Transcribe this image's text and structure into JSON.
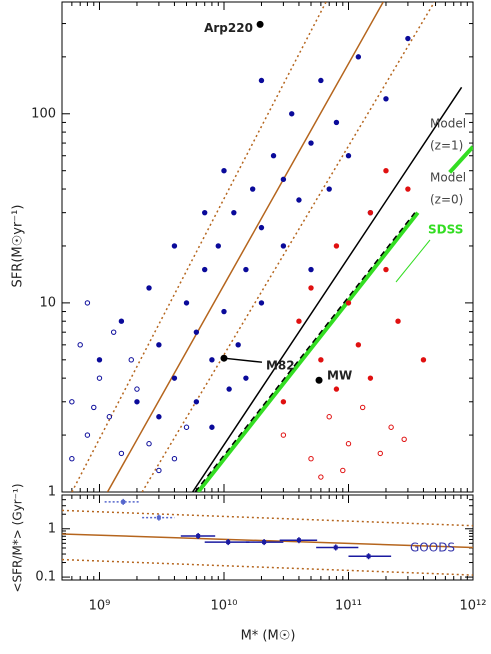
{
  "chart_data": [
    {
      "type": "scatter",
      "ylabel": "SFR(M☉yr⁻¹)",
      "xlog": true,
      "ylog": true,
      "xlim": [
        500000000.0,
        1000000000000.0
      ],
      "ylim": [
        1,
        390
      ],
      "yticks": [
        1,
        10,
        100
      ],
      "series": [
        {
          "color": "#0a0a9a",
          "marker": "filled",
          "x": [
            2000000000.0,
            3000000000.0,
            4000000000.0,
            5000000000.0,
            6000000000.0,
            7000000000.0,
            8000000000.0,
            9000000000.0,
            10000000000.0,
            12000000000.0,
            13000000000.0,
            15000000000.0,
            17000000000.0,
            20000000000.0,
            20000000000.0,
            25000000000.0,
            30000000000.0,
            30000000000.0,
            35000000000.0,
            40000000000.0,
            50000000000.0,
            50000000000.0,
            60000000000.0,
            70000000000.0,
            80000000000.0,
            100000000000.0,
            120000000000.0,
            150000000000.0,
            200000000000.0,
            300000000000.0,
            1500000000.0,
            2500000000.0,
            4000000000.0,
            6000000000.0,
            10000000000.0,
            15000000000.0,
            7000000000.0,
            3000000000.0,
            20000000000.0,
            1000000000.0,
            8000000000.0,
            11000000000.0
          ],
          "y": [
            3,
            6,
            4,
            10,
            7,
            15,
            5,
            20,
            9,
            30,
            6,
            15,
            40,
            25,
            10,
            60,
            20,
            45,
            100,
            35,
            70,
            15,
            150,
            40,
            90,
            60,
            200,
            30,
            120,
            250,
            8,
            12,
            20,
            3,
            50,
            4,
            30,
            2.5,
            150,
            5,
            2.2,
            3.5
          ]
        },
        {
          "color": "#0a0a9a",
          "marker": "open",
          "x": [
            600000000.0,
            700000000.0,
            800000000.0,
            1000000000.0,
            1200000000.0,
            1500000000.0,
            2000000000.0,
            2500000000.0,
            3000000000.0,
            800000000.0,
            1300000000.0,
            600000000.0,
            1800000000.0,
            4000000000.0,
            5000000000.0,
            900000000.0
          ],
          "y": [
            3,
            6,
            2,
            4,
            2.5,
            1.6,
            3.5,
            1.8,
            1.3,
            10,
            7,
            1.5,
            5,
            1.5,
            2.2,
            2.8
          ]
        },
        {
          "color": "#e01010",
          "marker": "filled",
          "x": [
            40000000000.0,
            50000000000.0,
            60000000000.0,
            80000000000.0,
            100000000000.0,
            120000000000.0,
            150000000000.0,
            200000000000.0,
            250000000000.0,
            300000000000.0,
            150000000000.0,
            30000000000.0,
            80000000000.0,
            400000000000.0,
            200000000000.0
          ],
          "y": [
            8,
            12,
            5,
            20,
            10,
            6,
            30,
            15,
            8,
            40,
            4,
            3,
            3.5,
            5,
            50
          ]
        },
        {
          "color": "#e01010",
          "marker": "open",
          "x": [
            30000000000.0,
            50000000000.0,
            70000000000.0,
            100000000000.0,
            130000000000.0,
            180000000000.0,
            220000000000.0,
            90000000000.0,
            60000000000.0,
            280000000000.0
          ],
          "y": [
            2,
            1.5,
            2.5,
            1.8,
            2.8,
            1.6,
            2.2,
            1.3,
            1.2,
            1.9
          ]
        }
      ],
      "lines": [
        {
          "color": "#b5651d",
          "style": "solid",
          "x": [
            1160000000.0,
            190000000000.0
          ],
          "y": [
            1,
            390
          ]
        },
        {
          "color": "#b5651d",
          "style": "dotted",
          "x": [
            600000000.0,
            66000000000.0
          ],
          "y": [
            1,
            390
          ]
        },
        {
          "color": "#b5651d",
          "style": "dotted",
          "x": [
            2200000000.0,
            490000000000.0
          ],
          "y": [
            1,
            390
          ]
        },
        {
          "color": "#000000",
          "style": "solid",
          "x": [
            5600000000.0,
            810000000000.0
          ],
          "y": [
            1,
            138
          ]
        },
        {
          "color": "#33dd22",
          "style": "thick",
          "x": [
            6200000000.0,
            360000000000.0
          ],
          "y": [
            1,
            30
          ]
        },
        {
          "color": "#33dd22",
          "style": "thick",
          "x": [
            650000000000.0,
            1000000000000.0
          ],
          "y": [
            49,
            67
          ]
        }
      ],
      "points": [
        {
          "text": "Arp220",
          "x": 19500000000.0,
          "y": 297
        },
        {
          "text": "M82",
          "x": 10000000000.0,
          "y": 5.1
        },
        {
          "text": "MW",
          "x": 58000000000.0,
          "y": 3.9
        }
      ],
      "annotations": [
        "Model",
        "(z=1)",
        "Model",
        "(z=0)",
        "SDSS"
      ]
    },
    {
      "type": "errorbar",
      "ylabel": "<SFR/M*> (Gyr⁻¹)",
      "xlabel": "M* (M☉)",
      "xlog": true,
      "ylog": true,
      "xlim": [
        500000000.0,
        1000000000000.0
      ],
      "ylim": [
        0.087,
        5
      ],
      "yticks": [
        0.1,
        1
      ],
      "xticks": [
        {
          "value": 1000000000.0,
          "label": "10⁹"
        },
        {
          "value": 10000000000.0,
          "label": "10¹⁰"
        },
        {
          "value": 100000000000.0,
          "label": "10¹¹"
        },
        {
          "value": 1000000000000.0,
          "label": "10¹²"
        }
      ],
      "series": [
        {
          "color": "#1a1aa0",
          "style": "solid",
          "x": [
            6200000000.0,
            10800000000.0,
            21000000000.0,
            40000000000.0,
            79000000000.0,
            145000000000.0
          ],
          "y": [
            0.71,
            0.53,
            0.53,
            0.58,
            0.41,
            0.27
          ],
          "xlow": [
            4500000000.0,
            7000000000.0,
            15000000000.0,
            28000000000.0,
            55000000000.0,
            100000000000.0
          ],
          "xhigh": [
            8500000000.0,
            16000000000.0,
            30000000000.0,
            56000000000.0,
            120000000000.0,
            220000000000.0
          ]
        },
        {
          "color": "#5566cc",
          "style": "dotted",
          "x": [
            1550000000.0,
            3000000000.0
          ],
          "y": [
            3.6,
            1.7
          ],
          "xlow": [
            1100000000.0,
            2200000000.0
          ],
          "xhigh": [
            2100000000.0,
            4000000000.0
          ]
        }
      ],
      "lines": [
        {
          "color": "#b5651d",
          "style": "solid",
          "x": [
            500000000.0,
            1000000000000.0
          ],
          "y": [
            0.78,
            0.41
          ]
        },
        {
          "color": "#b5651d",
          "style": "dotted",
          "x": [
            500000000.0,
            1000000000000.0
          ],
          "y": [
            2.4,
            1.16
          ]
        },
        {
          "color": "#b5651d",
          "style": "dotted",
          "x": [
            500000000.0,
            1000000000000.0
          ],
          "y": [
            0.23,
            0.11
          ]
        }
      ],
      "annotation": "GOODS"
    }
  ]
}
